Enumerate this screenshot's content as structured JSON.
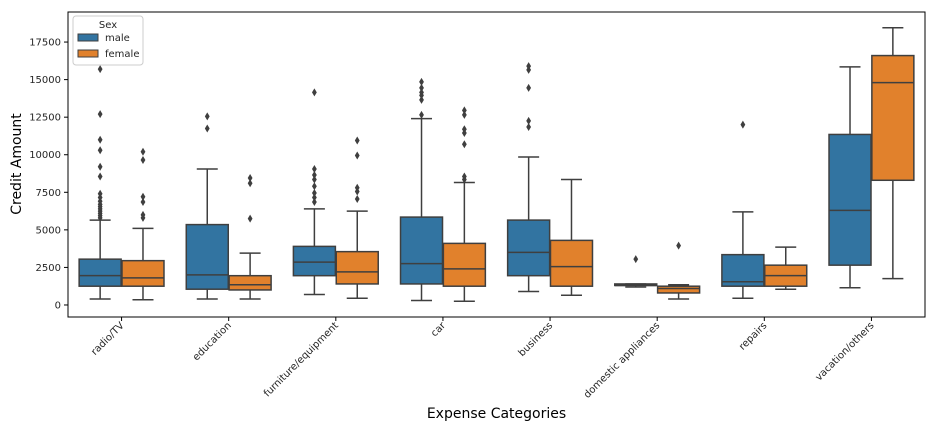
{
  "chart_data": {
    "type": "box",
    "xlabel": "Expense Categories",
    "ylabel": "Credit Amount",
    "ylim": [
      -800,
      19500
    ],
    "yticks": [
      0,
      2500,
      5000,
      7500,
      10000,
      12500,
      15000,
      17500
    ],
    "categories": [
      "radio/TV",
      "education",
      "furniture/equipment",
      "car",
      "business",
      "domestic appliances",
      "repairs",
      "vacation/others"
    ],
    "legend": {
      "title": "Sex",
      "position": "top-left"
    },
    "series": [
      {
        "name": "male",
        "color": "#3274a1",
        "boxes": [
          {
            "whislo": 400,
            "q1": 1250,
            "med": 1950,
            "q3": 3050,
            "whishi": 5650,
            "fliers": [
              5800,
              5950,
              6100,
              6250,
              6400,
              6550,
              6700,
              6900,
              7150,
              7400,
              8550,
              9200,
              10300,
              11000,
              12700,
              15700
            ]
          },
          {
            "whislo": 400,
            "q1": 1050,
            "med": 2000,
            "q3": 5350,
            "whishi": 9050,
            "fliers": [
              11750,
              12550
            ]
          },
          {
            "whislo": 700,
            "q1": 1950,
            "med": 2850,
            "q3": 3900,
            "whishi": 6400,
            "fliers": [
              6850,
              7150,
              7450,
              7900,
              8350,
              8650,
              9050,
              14150
            ]
          },
          {
            "whislo": 300,
            "q1": 1400,
            "med": 2750,
            "q3": 5850,
            "whishi": 12400,
            "fliers": [
              12650,
              13650,
              13950,
              14150,
              14450,
              14850
            ]
          },
          {
            "whislo": 900,
            "q1": 1950,
            "med": 3500,
            "q3": 5650,
            "whishi": 9850,
            "fliers": [
              11850,
              12250,
              14450,
              15650,
              15900
            ]
          },
          {
            "whislo": 1200,
            "q1": 1300,
            "med": 1300,
            "q3": 1400,
            "whishi": 1400,
            "fliers": [
              3050
            ]
          },
          {
            "whislo": 450,
            "q1": 1250,
            "med": 1550,
            "q3": 3350,
            "whishi": 6200,
            "fliers": [
              12000
            ]
          },
          {
            "whislo": 1150,
            "q1": 2650,
            "med": 6300,
            "q3": 11350,
            "whishi": 15850,
            "fliers": []
          }
        ]
      },
      {
        "name": "female",
        "color": "#e1812c",
        "boxes": [
          {
            "whislo": 350,
            "q1": 1250,
            "med": 1800,
            "q3": 2950,
            "whishi": 5100,
            "fliers": [
              5800,
              6000,
              6850,
              7200,
              9650,
              10200
            ]
          },
          {
            "whislo": 400,
            "q1": 1000,
            "med": 1350,
            "q3": 1950,
            "whishi": 3450,
            "fliers": [
              5750,
              8100,
              8450
            ]
          },
          {
            "whislo": 450,
            "q1": 1400,
            "med": 2200,
            "q3": 3550,
            "whishi": 6250,
            "fliers": [
              7050,
              7550,
              7800,
              9950,
              10950
            ]
          },
          {
            "whislo": 250,
            "q1": 1250,
            "med": 2400,
            "q3": 4100,
            "whishi": 8150,
            "fliers": [
              8350,
              8550,
              10700,
              11450,
              11700,
              12650,
              12950
            ]
          },
          {
            "whislo": 650,
            "q1": 1250,
            "med": 2550,
            "q3": 4300,
            "whishi": 8350,
            "fliers": []
          },
          {
            "whislo": 400,
            "q1": 800,
            "med": 1100,
            "q3": 1250,
            "whishi": 1350,
            "fliers": [
              3950
            ]
          },
          {
            "whislo": 1050,
            "q1": 1250,
            "med": 1950,
            "q3": 2650,
            "whishi": 3850,
            "fliers": []
          },
          {
            "whislo": 1750,
            "q1": 8300,
            "med": 14800,
            "q3": 16600,
            "whishi": 18450,
            "fliers": []
          }
        ]
      }
    ]
  }
}
